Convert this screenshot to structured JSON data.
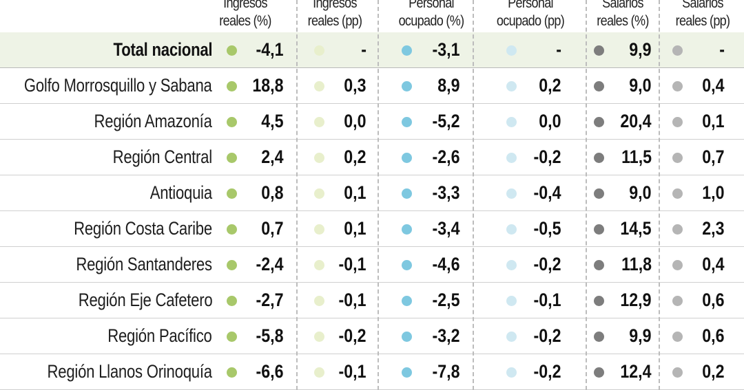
{
  "columns": [
    {
      "line1": "Ingresos",
      "line2": "reales (%)",
      "dot_color": "#a8c86a"
    },
    {
      "line1": "Ingresos",
      "line2": "reales (pp)",
      "dot_color": "#e8efcc"
    },
    {
      "line1": "Personal",
      "line2": "ocupado (%)",
      "dot_color": "#7ec8e0"
    },
    {
      "line1": "Personal",
      "line2": "ocupado (pp)",
      "dot_color": "#cfe8f1"
    },
    {
      "line1": "Salarios",
      "line2": "reales (%)",
      "dot_color": "#7d7d7d"
    },
    {
      "line1": "Salarios",
      "line2": "reales (pp)",
      "dot_color": "#b5b5b5"
    }
  ],
  "rows": [
    {
      "label": "Total nacional",
      "values": [
        "-4,1",
        "-",
        "-3,1",
        "-",
        "9,9",
        "-"
      ]
    },
    {
      "label": "Golfo Morrosquillo y Sabana",
      "values": [
        "18,8",
        "0,3",
        "8,9",
        "0,2",
        "9,0",
        "0,4"
      ]
    },
    {
      "label": "Región Amazonía",
      "values": [
        "4,5",
        "0,0",
        "-5,2",
        "0,0",
        "20,4",
        "0,1"
      ]
    },
    {
      "label": "Región Central",
      "values": [
        "2,4",
        "0,2",
        "-2,6",
        "-0,2",
        "11,5",
        "0,7"
      ]
    },
    {
      "label": "Antioquia",
      "values": [
        "0,8",
        "0,1",
        "-3,3",
        "-0,4",
        "9,0",
        "1,0"
      ]
    },
    {
      "label": "Región Costa Caribe",
      "values": [
        "0,7",
        "0,1",
        "-3,4",
        "-0,5",
        "14,5",
        "2,3"
      ]
    },
    {
      "label": "Región Santanderes",
      "values": [
        "-2,4",
        "-0,1",
        "-4,6",
        "-0,2",
        "11,8",
        "0,4"
      ]
    },
    {
      "label": "Región Eje Cafetero",
      "values": [
        "-2,7",
        "-0,1",
        "-2,5",
        "-0,1",
        "12,9",
        "0,6"
      ]
    },
    {
      "label": "Región Pacífico",
      "values": [
        "-5,8",
        "-0,2",
        "-3,2",
        "-0,2",
        "9,9",
        "0,6"
      ]
    },
    {
      "label": "Región Llanos Orinoquía",
      "values": [
        "-6,6",
        "-0,1",
        "-7,8",
        "-0,2",
        "12,4",
        "0,2"
      ]
    }
  ]
}
